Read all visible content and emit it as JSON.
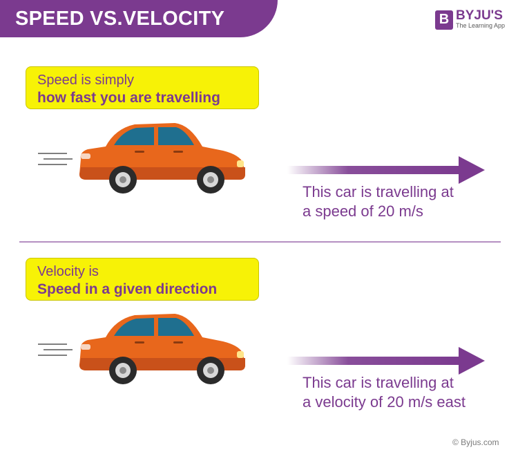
{
  "header": {
    "title": "SPEED VS.VELOCITY"
  },
  "logo": {
    "mark": "B",
    "name": "BYJU'S",
    "tagline": "The Learning App"
  },
  "sections": [
    {
      "callout_line1": "Speed is simply",
      "callout_line2": "how fast you are travelling",
      "caption_line1": "This car is travelling at",
      "caption_line2": "a speed of 20 m/s"
    },
    {
      "callout_line1": "Velocity is",
      "callout_line2": "Speed in a given direction",
      "caption_line1": "This car is travelling at",
      "caption_line2": "a velocity of 20 m/s east"
    }
  ],
  "footer": {
    "copyright": "© Byjus.com"
  },
  "colors": {
    "brand_purple": "#7b3a8f",
    "callout_yellow": "#f7f206",
    "car_orange": "#e8671c",
    "car_window": "#1f6f8f"
  },
  "icons": [
    "car-icon",
    "arrow-right-icon",
    "speed-lines-icon"
  ]
}
